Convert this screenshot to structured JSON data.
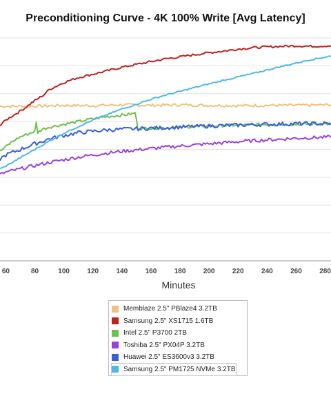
{
  "chart_data": {
    "type": "line",
    "title": "Preconditioning Curve - 4K 100% Write [Avg Latency]",
    "xlabel": "Minutes",
    "ylabel": "",
    "x_ticks": [
      60,
      80,
      100,
      120,
      140,
      160,
      180,
      200,
      220,
      240,
      260,
      280
    ],
    "xlim": [
      56,
      284
    ],
    "ylim": [
      0,
      8
    ],
    "grid": true,
    "legend_position": "bottom",
    "series": [
      {
        "name": "Memblaze 2.5\" PBlaze4 3.2TB",
        "color": "#f0c080",
        "x": [
          56,
          80,
          100,
          120,
          140,
          160,
          180,
          200,
          220,
          240,
          260,
          284
        ],
        "y": [
          5.55,
          5.55,
          5.58,
          5.57,
          5.6,
          5.58,
          5.6,
          5.58,
          5.57,
          5.58,
          5.58,
          5.6
        ]
      },
      {
        "name": "Samsung 2.5\" XS1715 1.6TB",
        "color": "#c21f1f",
        "x": [
          56,
          60,
          66,
          72,
          80,
          86,
          90,
          100,
          110,
          120,
          130,
          140,
          150,
          160,
          170,
          180,
          190,
          200,
          210,
          220,
          230,
          240,
          250,
          260,
          270,
          284
        ],
        "y": [
          4.85,
          5.05,
          5.25,
          5.45,
          5.75,
          5.95,
          6.15,
          6.4,
          6.58,
          6.7,
          6.82,
          6.95,
          7.05,
          7.15,
          7.25,
          7.32,
          7.4,
          7.47,
          7.53,
          7.6,
          7.65,
          7.68,
          7.7,
          7.72,
          7.7,
          7.72
        ]
      },
      {
        "name": "Intel 2.5\" P3700 2TB",
        "color": "#6cc24a",
        "x": [
          56,
          60,
          65,
          70,
          75,
          80,
          81,
          82,
          85,
          90,
          100,
          110,
          120,
          130,
          140,
          148,
          149,
          151,
          160,
          180,
          200,
          220,
          240,
          260,
          284
        ],
        "y": [
          3.92,
          4.1,
          4.3,
          4.45,
          4.55,
          4.65,
          4.95,
          4.6,
          4.72,
          4.8,
          4.9,
          5.0,
          5.1,
          5.18,
          5.23,
          5.28,
          5.33,
          4.75,
          4.76,
          4.8,
          4.84,
          4.87,
          4.9,
          4.9,
          4.92
        ]
      },
      {
        "name": "Toshiba 2.5\" PX04P 3.2TB",
        "color": "#9b3fe0",
        "x": [
          56,
          60,
          70,
          80,
          90,
          100,
          110,
          120,
          130,
          140,
          150,
          160,
          170,
          180,
          190,
          200,
          210,
          220,
          230,
          240,
          250,
          260,
          270,
          284
        ],
        "y": [
          3.1,
          3.18,
          3.3,
          3.42,
          3.53,
          3.63,
          3.72,
          3.8,
          3.87,
          3.93,
          3.98,
          4.03,
          4.08,
          4.12,
          4.16,
          4.2,
          4.24,
          4.28,
          4.31,
          4.34,
          4.37,
          4.4,
          4.42,
          4.44
        ]
      },
      {
        "name": "Huawei 2.5\" ES3600v3 3.2TB",
        "color": "#3a5fd8",
        "x": [
          56,
          60,
          70,
          80,
          90,
          100,
          110,
          120,
          130,
          140,
          150,
          160,
          170,
          180,
          200,
          220,
          240,
          260,
          284
        ],
        "y": [
          3.65,
          3.8,
          4.0,
          4.2,
          4.38,
          4.5,
          4.6,
          4.65,
          4.7,
          4.72,
          4.74,
          4.76,
          4.78,
          4.8,
          4.84,
          4.87,
          4.9,
          4.92,
          4.93
        ]
      },
      {
        "name": "Samsung 2.5\" PM1725 NVMe 3.2TB",
        "color": "#4fb8e6",
        "x": [
          56,
          60,
          70,
          80,
          90,
          100,
          110,
          120,
          130,
          140,
          150,
          160,
          170,
          180,
          190,
          200,
          210,
          220,
          230,
          240,
          250,
          260,
          270,
          284
        ],
        "y": [
          3.3,
          3.4,
          3.7,
          4.0,
          4.3,
          4.58,
          4.82,
          5.05,
          5.25,
          5.45,
          5.62,
          5.8,
          5.95,
          6.08,
          6.22,
          6.35,
          6.48,
          6.6,
          6.72,
          6.85,
          6.98,
          7.1,
          7.22,
          7.35
        ]
      }
    ]
  }
}
